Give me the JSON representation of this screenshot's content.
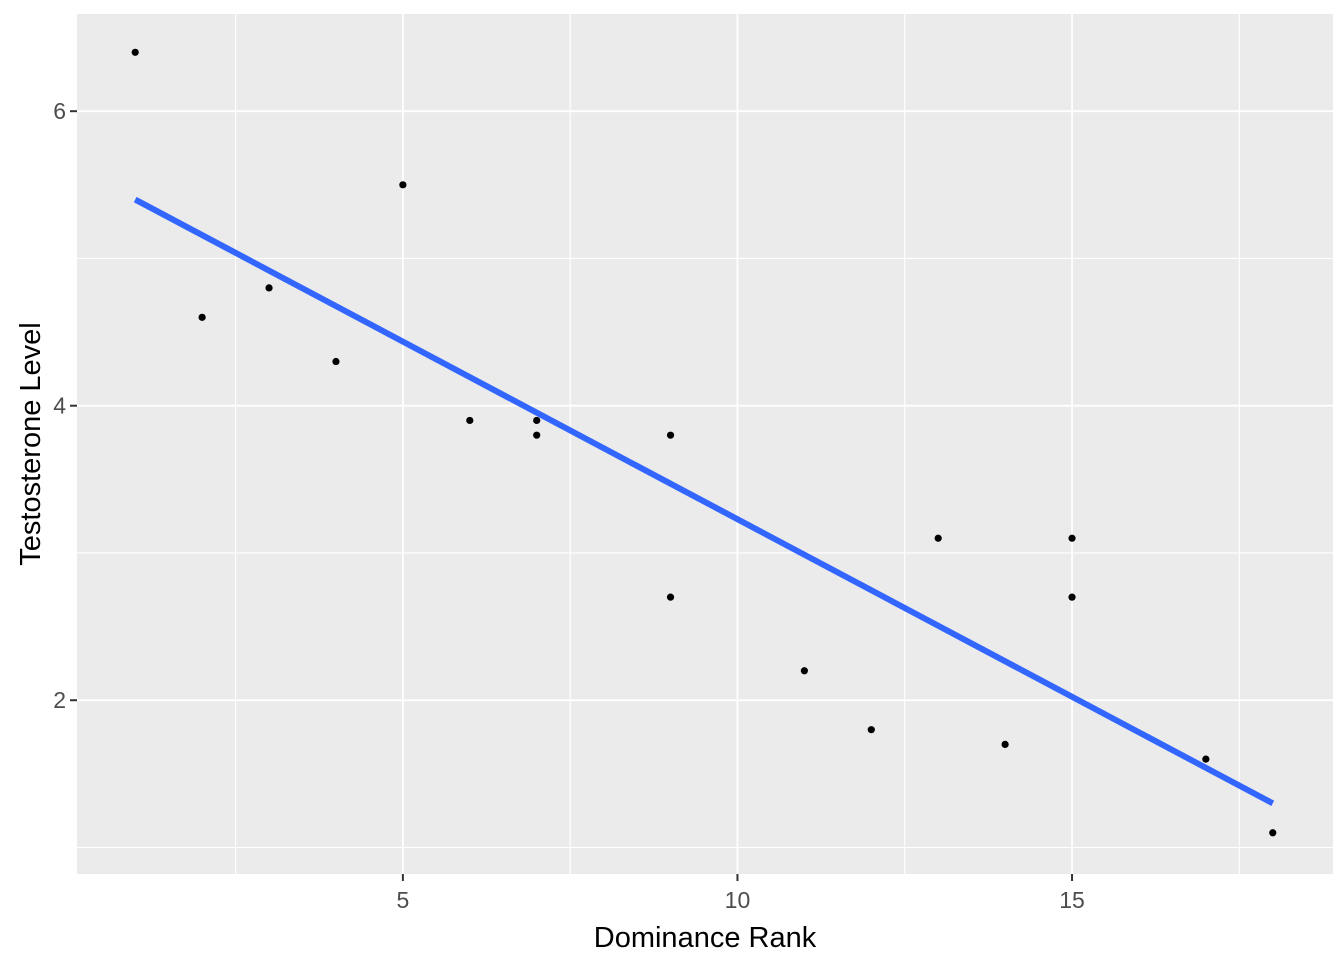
{
  "chart_data": {
    "type": "scatter",
    "title": "",
    "xlabel": "Dominance Rank",
    "ylabel": "Testosterone Level",
    "points": [
      {
        "x": 1,
        "y": 6.4
      },
      {
        "x": 2,
        "y": 4.6
      },
      {
        "x": 3,
        "y": 4.8
      },
      {
        "x": 4,
        "y": 4.3
      },
      {
        "x": 5,
        "y": 5.5
      },
      {
        "x": 6,
        "y": 3.9
      },
      {
        "x": 7,
        "y": 3.9
      },
      {
        "x": 7,
        "y": 3.8
      },
      {
        "x": 9,
        "y": 3.8
      },
      {
        "x": 9,
        "y": 2.7
      },
      {
        "x": 11,
        "y": 2.2
      },
      {
        "x": 12,
        "y": 1.8
      },
      {
        "x": 13,
        "y": 3.1
      },
      {
        "x": 14,
        "y": 1.7
      },
      {
        "x": 15,
        "y": 3.1
      },
      {
        "x": 15,
        "y": 2.7
      },
      {
        "x": 17,
        "y": 1.6
      },
      {
        "x": 18,
        "y": 1.1
      }
    ],
    "trend_line": {
      "x1": 1,
      "y1": 5.4,
      "x2": 18,
      "y2": 1.3
    },
    "x_ticks": [
      5,
      10,
      15
    ],
    "y_ticks": [
      2,
      4,
      6
    ],
    "x_minor_breaks": [
      2.5,
      7.5,
      12.5,
      17.5
    ],
    "y_minor_breaks": [
      1,
      3,
      5
    ],
    "xlim": [
      0.13,
      18.9
    ],
    "ylim": [
      0.82,
      6.66
    ],
    "grid": "on",
    "legend": "none"
  },
  "style": {
    "panel_bg": "#EBEBEB",
    "grid_color": "#FFFFFF",
    "point_color": "#000000",
    "trend_color": "#3366FF",
    "tick_color": "#333333",
    "tick_label_color": "#4D4D4D",
    "axis_title_color": "#000000"
  }
}
